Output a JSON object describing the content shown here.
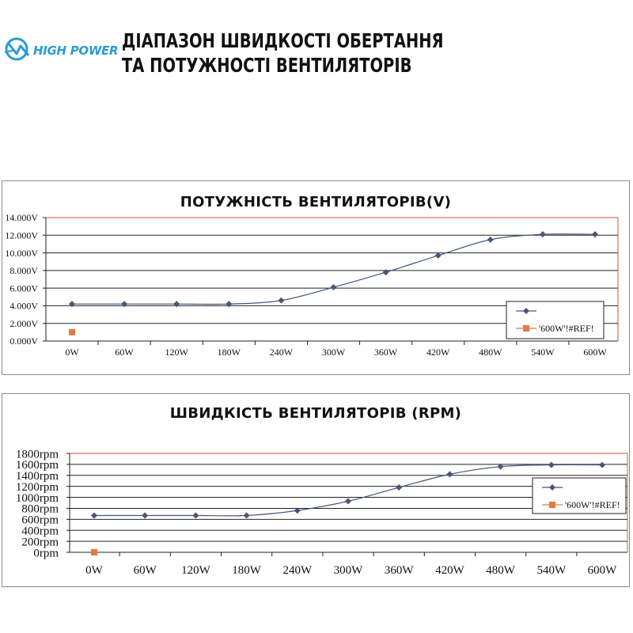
{
  "header": {
    "logo_text": "HIGH POWER",
    "title_lines": [
      "ДІАПАЗОН ШВИДКОСТІ ОБЕРТАННЯ",
      "ТА ПОТУЖНОСТІ ВЕНТИЛЯТОРІВ"
    ]
  },
  "colors": {
    "series_main": "#4a5578",
    "series_ref": "#e07a45",
    "plot_border": "#d9503a",
    "logo": "#2a9bd6"
  },
  "chart_data": [
    {
      "type": "line",
      "title": "ПОТУЖНІСТЬ ВЕНТИЛЯТОРІВ(V)",
      "categories": [
        "0W",
        "60W",
        "120W",
        "180W",
        "240W",
        "300W",
        "360W",
        "420W",
        "480W",
        "540W",
        "600W"
      ],
      "yticks": [
        "0.000V",
        "2.000V",
        "4.000V",
        "6.000V",
        "8.000V",
        "10.000V",
        "12.000V",
        "14.000V"
      ],
      "ylim": [
        0,
        14
      ],
      "grid": true,
      "legend_position": "bottom-right",
      "series": [
        {
          "name": "",
          "marker": "diamond",
          "values": [
            4.2,
            4.2,
            4.2,
            4.2,
            4.6,
            6.1,
            7.8,
            9.7,
            11.5,
            12.1,
            12.1
          ]
        },
        {
          "name": "'600W'!#REF!",
          "marker": "square",
          "values": [
            1.0,
            null,
            null,
            null,
            null,
            null,
            null,
            null,
            null,
            null,
            null
          ]
        }
      ]
    },
    {
      "type": "line",
      "title": "ШВИДКІСТЬ ВЕНТИЛЯТОРІВ (RPM)",
      "categories": [
        "0W",
        "60W",
        "120W",
        "180W",
        "240W",
        "300W",
        "360W",
        "420W",
        "480W",
        "540W",
        "600W"
      ],
      "yticks": [
        "0rpm",
        "200rpm",
        "400rpm",
        "600rpm",
        "800rpm",
        "1000rpm",
        "1200rpm",
        "1400rpm",
        "1600rpm",
        "1800rpm"
      ],
      "ylim": [
        0,
        1800
      ],
      "grid": true,
      "legend_position": "bottom-right",
      "series": [
        {
          "name": "",
          "marker": "diamond",
          "values": [
            670,
            670,
            670,
            670,
            760,
            930,
            1180,
            1420,
            1560,
            1590,
            1590
          ]
        },
        {
          "name": "'600W'!#REF!",
          "marker": "square",
          "values": [
            0,
            null,
            null,
            null,
            null,
            null,
            null,
            null,
            null,
            null,
            null
          ]
        }
      ]
    }
  ]
}
